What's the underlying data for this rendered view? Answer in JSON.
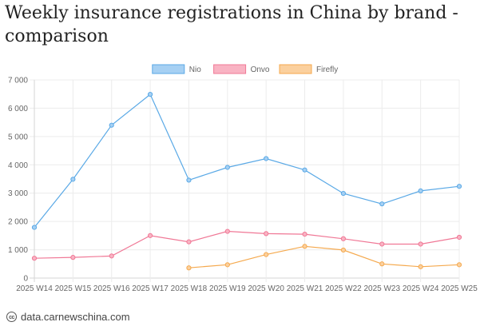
{
  "title": "Weekly insurance registrations in China by brand - comparison",
  "footer": {
    "text": "data.carnewschina.com",
    "icon": "creative-commons-icon",
    "icon_text": "cc"
  },
  "chart_data": {
    "type": "line",
    "title": "Weekly insurance registrations in China by brand - comparison",
    "xlabel": "",
    "ylabel": "",
    "ylim": [
      0,
      7000
    ],
    "yticks": [
      0,
      1000,
      2000,
      3000,
      4000,
      5000,
      6000,
      7000
    ],
    "ytick_labels": [
      "0",
      "1 000",
      "2 000",
      "3 000",
      "4 000",
      "5 000",
      "6 000",
      "7 000"
    ],
    "grid": true,
    "legend_position": "top-center",
    "categories": [
      "2025 W14",
      "2025 W15",
      "2025 W16",
      "2025 W17",
      "2025 W18",
      "2025 W19",
      "2025 W20",
      "2025 W21",
      "2025 W22",
      "2025 W23",
      "2025 W24",
      "2025 W25"
    ],
    "series": [
      {
        "name": "Nio",
        "color": "#5aa9e6",
        "fill": "#a6d0f3",
        "values": [
          1790,
          3490,
          5400,
          6490,
          3460,
          3910,
          4220,
          3820,
          2990,
          2620,
          3080,
          3240
        ]
      },
      {
        "name": "Onvo",
        "color": "#f07896",
        "fill": "#f9b3c3",
        "values": [
          700,
          730,
          780,
          1500,
          1280,
          1650,
          1570,
          1550,
          1390,
          1200,
          1200,
          1440
        ]
      },
      {
        "name": "Firefly",
        "color": "#f5a94e",
        "fill": "#fbd09e",
        "values": [
          null,
          null,
          null,
          null,
          360,
          470,
          830,
          1120,
          990,
          500,
          400,
          470
        ]
      }
    ]
  }
}
